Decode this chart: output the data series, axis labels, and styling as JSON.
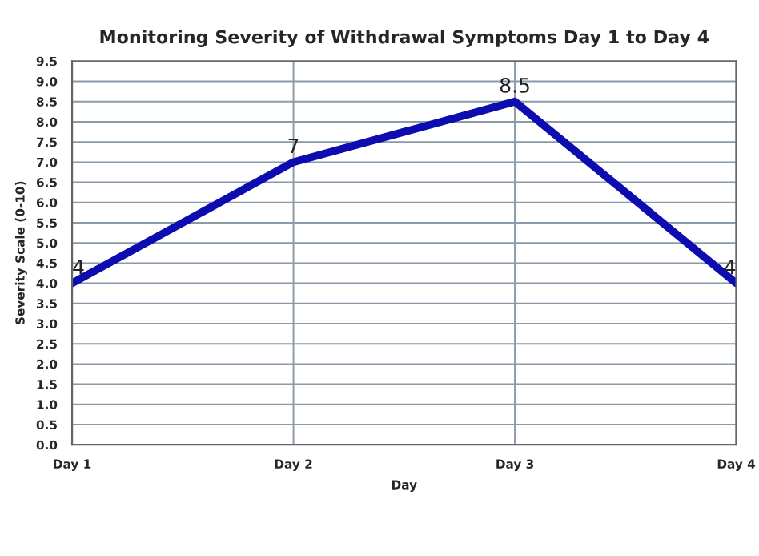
{
  "chart_data": {
    "type": "line",
    "title": "Monitoring Severity of Withdrawal Symptoms Day 1 to Day 4",
    "xlabel": "Day",
    "ylabel": "Severity Scale (0-10)",
    "categories": [
      "Day 1",
      "Day 2",
      "Day 3",
      "Day 4"
    ],
    "series": [
      {
        "color": "#0c0cb0",
        "values": [
          4,
          7,
          8.5,
          4
        ]
      }
    ],
    "ylim": [
      0,
      9.5
    ],
    "yticks": [
      {
        "value": 0,
        "label": "0.0"
      },
      {
        "value": 0.5,
        "label": "0.5"
      },
      {
        "value": 1,
        "label": "1.0"
      },
      {
        "value": 1.5,
        "label": "1.5"
      },
      {
        "value": 2,
        "label": "2.0"
      },
      {
        "value": 2.5,
        "label": "2.5"
      },
      {
        "value": 3,
        "label": "3.0"
      },
      {
        "value": 3.5,
        "label": "3.5"
      },
      {
        "value": 4,
        "label": "4.0"
      },
      {
        "value": 4.5,
        "label": "4.5"
      },
      {
        "value": 5,
        "label": "5.0"
      },
      {
        "value": 5.5,
        "label": "5.5"
      },
      {
        "value": 6,
        "label": "6.0"
      },
      {
        "value": 6.5,
        "label": "6.5"
      },
      {
        "value": 7,
        "label": "7.0"
      },
      {
        "value": 7.5,
        "label": "7.5"
      },
      {
        "value": 8,
        "label": "8.0"
      },
      {
        "value": 8.5,
        "label": "8.5"
      },
      {
        "value": 9,
        "label": "9.0"
      },
      {
        "value": 9.5,
        "label": "9.5"
      }
    ],
    "grid": true,
    "data_labels": true,
    "marker": "none",
    "line_style": "solid"
  }
}
